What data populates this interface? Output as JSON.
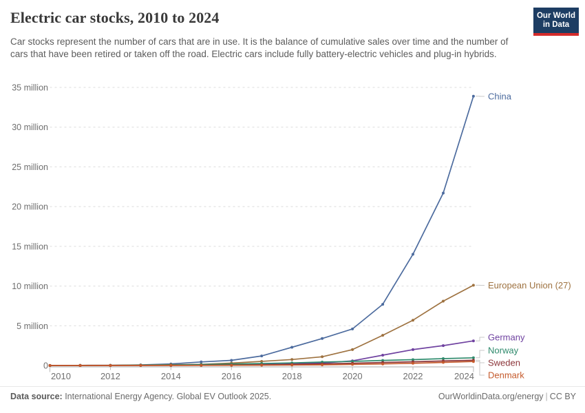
{
  "header": {
    "title": "Electric car stocks, 2010 to 2024",
    "subtitle": "Car stocks represent the number of cars that are in use. It is the balance of cumulative sales over time and the number of cars that have been retired or taken off the road. Electric cars include fully battery-electric vehicles and plug-in hybrids.",
    "logo": {
      "line1": "Our World",
      "line2": "in Data",
      "bg_color": "#1d3d63",
      "stripe_color": "#d42b2b"
    }
  },
  "chart_data": {
    "type": "line",
    "title": "Electric car stocks, 2010 to 2024",
    "unit": "million vehicles",
    "xlabel": "",
    "ylabel": "",
    "ylim": [
      0,
      35
    ],
    "grid": "horizontal-dashed",
    "legend_position": "end-of-line-labels",
    "x": [
      2010,
      2011,
      2012,
      2013,
      2014,
      2015,
      2016,
      2017,
      2018,
      2019,
      2020,
      2021,
      2022,
      2023,
      2024
    ],
    "xticks": [
      2010,
      2012,
      2014,
      2016,
      2018,
      2020,
      2022,
      2024
    ],
    "yticks": [
      {
        "value": 0,
        "label": "0"
      },
      {
        "value": 5,
        "label": "5 million"
      },
      {
        "value": 10,
        "label": "10 million"
      },
      {
        "value": 15,
        "label": "15 million"
      },
      {
        "value": 20,
        "label": "20 million"
      },
      {
        "value": 25,
        "label": "25 million"
      },
      {
        "value": 30,
        "label": "30 million"
      },
      {
        "value": 35,
        "label": "35 million"
      }
    ],
    "series": [
      {
        "id": "china",
        "name": "China",
        "color": "#4C6B9E",
        "values": [
          0.01,
          0.02,
          0.03,
          0.08,
          0.2,
          0.45,
          0.65,
          1.2,
          2.3,
          3.4,
          4.6,
          7.7,
          14.0,
          21.7,
          33.9
        ]
      },
      {
        "id": "european-union-27",
        "name": "European Union (27)",
        "color": "#9E7240",
        "values": [
          0.01,
          0.02,
          0.03,
          0.05,
          0.1,
          0.15,
          0.3,
          0.52,
          0.75,
          1.1,
          2.0,
          3.8,
          5.7,
          8.1,
          10.1
        ]
      },
      {
        "id": "germany",
        "name": "Germany",
        "color": "#6F42A0",
        "values": [
          0,
          0.01,
          0.01,
          0.02,
          0.03,
          0.05,
          0.08,
          0.13,
          0.2,
          0.31,
          0.59,
          1.3,
          2.0,
          2.5,
          3.1
        ]
      },
      {
        "id": "norway",
        "name": "Norway",
        "color": "#2F8A6C",
        "values": [
          0,
          0.01,
          0.02,
          0.04,
          0.07,
          0.12,
          0.18,
          0.25,
          0.33,
          0.43,
          0.52,
          0.64,
          0.74,
          0.87,
          0.97
        ]
      },
      {
        "id": "sweden",
        "name": "Sweden",
        "color": "#8B3439",
        "values": [
          0,
          0,
          0.01,
          0.01,
          0.02,
          0.03,
          0.05,
          0.08,
          0.13,
          0.2,
          0.29,
          0.38,
          0.47,
          0.57,
          0.66
        ]
      },
      {
        "id": "denmark",
        "name": "Denmark",
        "color": "#C55A2C",
        "values": [
          0,
          0,
          0,
          0.01,
          0.01,
          0.02,
          0.03,
          0.04,
          0.06,
          0.09,
          0.14,
          0.2,
          0.28,
          0.39,
          0.5
        ]
      }
    ]
  },
  "footer": {
    "source_prefix": "Data source:",
    "source_text": " International Energy Agency. Global EV Outlook 2025.",
    "link": "OurWorldinData.org/energy",
    "separator": "|",
    "license": "CC BY"
  }
}
